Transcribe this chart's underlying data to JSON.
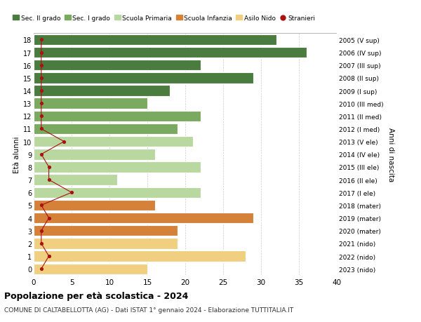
{
  "ages": [
    18,
    17,
    16,
    15,
    14,
    13,
    12,
    11,
    10,
    9,
    8,
    7,
    6,
    5,
    4,
    3,
    2,
    1,
    0
  ],
  "values": [
    32,
    36,
    22,
    29,
    18,
    15,
    22,
    19,
    21,
    16,
    22,
    11,
    22,
    16,
    29,
    19,
    19,
    28,
    15
  ],
  "right_labels": [
    "2005 (V sup)",
    "2006 (IV sup)",
    "2007 (III sup)",
    "2008 (II sup)",
    "2009 (I sup)",
    "2010 (III med)",
    "2011 (II med)",
    "2012 (I med)",
    "2013 (V ele)",
    "2014 (IV ele)",
    "2015 (III ele)",
    "2016 (II ele)",
    "2017 (I ele)",
    "2018 (mater)",
    "2019 (mater)",
    "2020 (mater)",
    "2021 (nido)",
    "2022 (nido)",
    "2023 (nido)"
  ],
  "bar_colors": [
    "#4a7c3f",
    "#4a7c3f",
    "#4a7c3f",
    "#4a7c3f",
    "#4a7c3f",
    "#7aaa5f",
    "#7aaa5f",
    "#7aaa5f",
    "#b8d8a0",
    "#b8d8a0",
    "#b8d8a0",
    "#b8d8a0",
    "#b8d8a0",
    "#d4813a",
    "#d4813a",
    "#d4813a",
    "#f0d080",
    "#f0d080",
    "#f0d080"
  ],
  "stranieri_values": [
    1,
    1,
    1,
    1,
    1,
    1,
    1,
    1,
    4,
    1,
    2,
    2,
    5,
    1,
    2,
    1,
    1,
    2,
    1
  ],
  "xlim": [
    0,
    40
  ],
  "xticks": [
    0,
    5,
    10,
    15,
    20,
    25,
    30,
    35,
    40
  ],
  "ylabel_left": "Età alunni",
  "ylabel_right": "Anni di nascita",
  "title": "Popolazione per età scolastica - 2024",
  "subtitle": "COMUNE DI CALTABELLOTTA (AG) - Dati ISTAT 1° gennaio 2024 - Elaborazione TUTTITALIA.IT",
  "legend_labels": [
    "Sec. II grado",
    "Sec. I grado",
    "Scuola Primaria",
    "Scuola Infanzia",
    "Asilo Nido",
    "Stranieri"
  ],
  "legend_colors": [
    "#4a7c3f",
    "#7aaa5f",
    "#b8d8a0",
    "#d4813a",
    "#f0d080",
    "#cc0000"
  ],
  "background_color": "#ffffff",
  "grid_color": "#cccccc",
  "stranieri_color": "#aa1111"
}
